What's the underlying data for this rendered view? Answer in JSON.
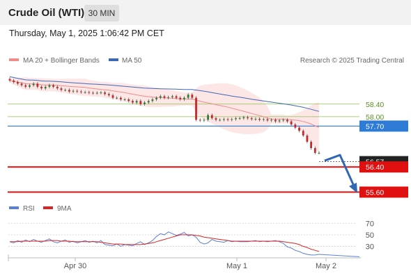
{
  "header": {
    "title": "Crude Oil (WTI)",
    "timeframe": "30 MIN",
    "datetime": "Thursday, May 1, 2025 1:06:42 PM CET"
  },
  "legend": {
    "ma20": "MA 20 + Bollinger Bands",
    "ma50": "MA 50",
    "credit": "Research © 2025 Trading Central",
    "rsi": "RSI",
    "ma9": "9MA"
  },
  "colors": {
    "ma20": "#f08c8c",
    "ma50": "#3f68b4",
    "band": "#fde2e2",
    "up": "#2e7d32",
    "down": "#c62828",
    "resistance": "#8bc34a",
    "pivot": "#2e7bd6",
    "support": "#e01010",
    "arrow": "#2f67b2",
    "rsi": "#5b7fd6",
    "rsi_ma": "#dd2222"
  },
  "chart_data": {
    "type": "candlestick",
    "x_labels": [
      "Apr 30",
      "May 1",
      "May 2"
    ],
    "y_range": [
      55.3,
      59.5
    ],
    "closes": [
      59.15,
      59.1,
      59.05,
      59.0,
      58.95,
      59.0,
      59.05,
      58.95,
      58.9,
      58.95,
      59.0,
      58.95,
      58.9,
      58.85,
      58.85,
      58.8,
      58.82,
      58.8,
      58.78,
      58.78,
      58.76,
      58.75,
      58.76,
      58.77,
      58.72,
      58.68,
      58.6,
      58.6,
      58.55,
      58.55,
      58.5,
      58.45,
      58.5,
      58.4,
      58.45,
      58.5,
      58.55,
      58.6,
      58.65,
      58.6,
      58.62,
      58.65,
      58.6,
      58.55,
      58.6,
      58.7,
      58.6,
      57.9,
      57.88,
      57.9,
      58.05,
      57.95,
      57.9,
      57.9,
      57.92,
      57.9,
      57.92,
      57.95,
      57.95,
      57.98,
      57.95,
      57.92,
      57.93,
      57.9,
      57.92,
      57.88,
      57.9,
      57.85,
      57.88,
      57.9,
      57.85,
      57.75,
      57.65,
      57.55,
      57.4,
      57.2,
      57.0,
      56.85,
      56.85
    ],
    "levels": {
      "resistance": [
        58.4,
        58.0
      ],
      "pivot": 57.7,
      "current": 56.57,
      "support": [
        56.4,
        55.6
      ]
    },
    "projection": [
      56.6,
      56.78,
      55.7
    ],
    "rsi": {
      "levels": [
        70,
        50,
        30
      ],
      "values": [
        38,
        36,
        40,
        37,
        41,
        38,
        42,
        39,
        37,
        40,
        43,
        38,
        36,
        39,
        41,
        37,
        39,
        36,
        38,
        40,
        37,
        39,
        36,
        40,
        33,
        32,
        31,
        34,
        30,
        33,
        32,
        31,
        35,
        38,
        33,
        36,
        40,
        47,
        52,
        50,
        55,
        52,
        49,
        51,
        54,
        48,
        50,
        46,
        37,
        34,
        36,
        42,
        39,
        38,
        37,
        40,
        38,
        39,
        38,
        38,
        38,
        39,
        40,
        38,
        39,
        38,
        39,
        40,
        38,
        35,
        29,
        27,
        23,
        21,
        18,
        16,
        15,
        15,
        16
      ],
      "ma9": [
        38,
        38,
        38,
        39,
        39,
        39,
        39,
        39,
        39,
        39,
        40,
        40,
        40,
        39,
        39,
        39,
        38,
        38,
        38,
        38,
        38,
        38,
        38,
        37,
        36,
        35,
        34,
        34,
        34,
        33,
        33,
        33,
        33,
        33,
        34,
        35,
        36,
        38,
        40,
        42,
        44,
        46,
        48,
        50,
        50,
        50,
        50,
        49,
        48,
        46,
        45,
        44,
        43,
        42,
        41,
        40,
        39,
        39,
        39,
        39,
        39,
        39,
        39,
        39,
        39,
        39,
        39,
        39,
        39,
        38,
        37,
        36,
        35,
        33,
        30,
        28,
        25,
        23,
        21
      ],
      "ticks": [
        "70",
        "50",
        "30"
      ]
    },
    "tags": {
      "r1": "58.40",
      "r2": "58.00",
      "pivot": "57.70",
      "current": "56.57",
      "s1": "56.40",
      "s2": "55.60"
    }
  }
}
